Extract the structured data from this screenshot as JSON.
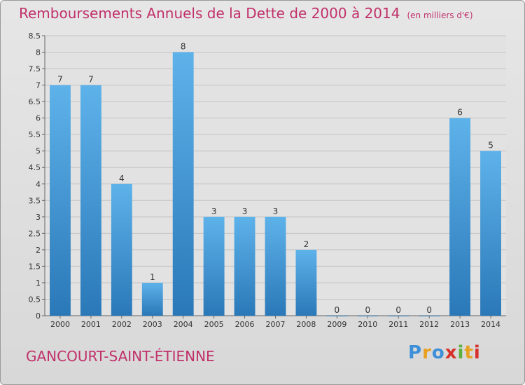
{
  "header": {
    "title": "Remboursements Annuels de la Dette de 2000 à 2014",
    "unit": "(en milliers d'€)"
  },
  "footer": {
    "commune": "GANCOURT-SAINT-ÉTIENNE",
    "logo": {
      "text": "Proxiti",
      "colors": [
        "#3c8fd8",
        "#e8a020",
        "#3c8fd8",
        "#d8302a",
        "#60b040",
        "#e8a020",
        "#d8302a"
      ]
    }
  },
  "colors": {
    "bar_light": "#5eb2ea",
    "bar_dark": "#2a78b8",
    "title": "#c0306a",
    "grid": "#c4c4c4",
    "axis_text": "#333333"
  },
  "chart_data": {
    "type": "bar",
    "categories": [
      "2000",
      "2001",
      "2002",
      "2003",
      "2004",
      "2005",
      "2006",
      "2007",
      "2008",
      "2009",
      "2010",
      "2011",
      "2012",
      "2013",
      "2014"
    ],
    "values": [
      7,
      7,
      4,
      1,
      8,
      3,
      3,
      3,
      2,
      0,
      0,
      0,
      0,
      6,
      5
    ],
    "title": "Remboursements Annuels de la Dette de 2000 à 2014",
    "ylim": [
      0,
      8.5
    ],
    "yticks": [
      "0",
      "0.5",
      "1",
      "1.5",
      "2",
      "2.5",
      "3",
      "3.5",
      "4",
      "4.5",
      "5",
      "5.5",
      "6",
      "6.5",
      "7",
      "7.5",
      "8",
      "8.5"
    ],
    "grid": true,
    "legend": "none"
  }
}
